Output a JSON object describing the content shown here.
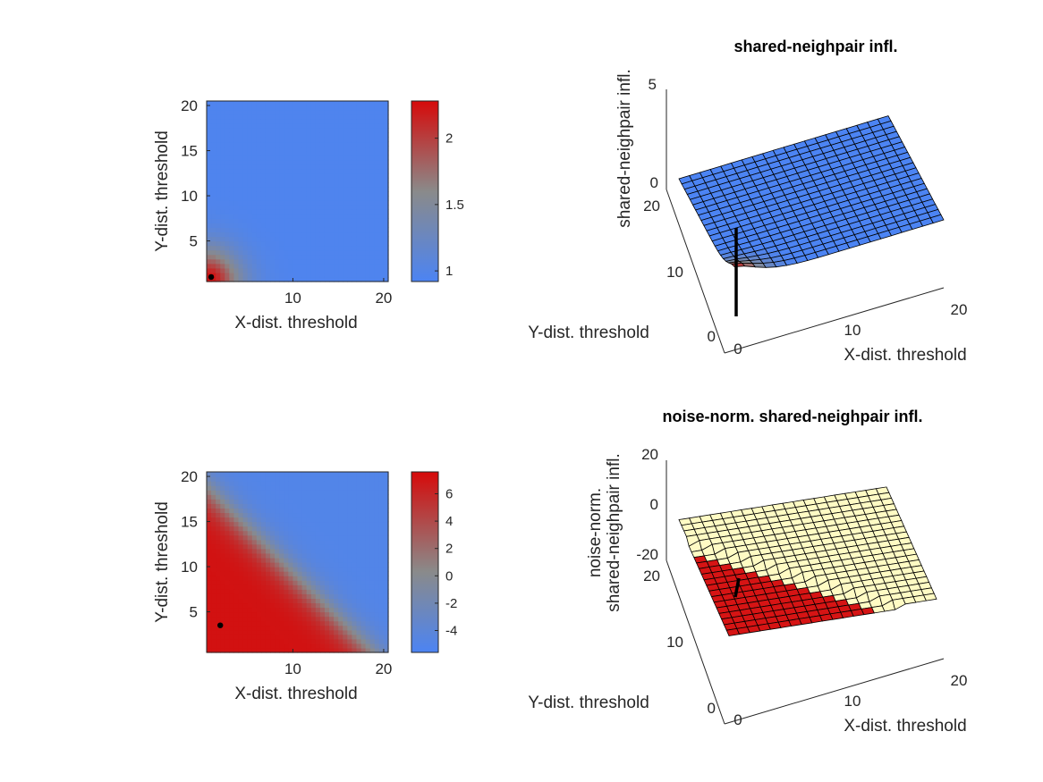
{
  "chart_data": [
    {
      "type": "heatmap",
      "xlabel": "X-dist. threshold",
      "ylabel": "Y-dist. threshold",
      "x_ticks": [
        "10",
        "20"
      ],
      "y_ticks": [
        "5",
        "10",
        "15",
        "20"
      ],
      "xlim": [
        0.5,
        20.5
      ],
      "ylim": [
        0.5,
        20.5
      ],
      "colorbar": {
        "ticks": [
          "1",
          "1.5",
          "2"
        ],
        "tick_values": [
          1,
          1.5,
          2
        ],
        "range": [
          0.92,
          2.28
        ]
      },
      "colormap": [
        "#4c84f3",
        "#8a8a8a",
        "#d60a0a"
      ],
      "value_model": "v = 0.95 + 1.3 * exp(-((x-1)/3.2)^1.6) * exp(-((y-1)/3.2)^1.6)",
      "marker": {
        "x": 1,
        "y": 1
      }
    },
    {
      "type": "surface",
      "title": "shared-neighpair infl.",
      "xlabel": "X-dist. threshold",
      "ylabel": "Y-dist. threshold",
      "zlabel": "shared-neighpair infl.",
      "x_ticks": [
        "0",
        "10",
        "20"
      ],
      "y_ticks": [
        "0",
        "10",
        "20"
      ],
      "z_ticks": [
        "0",
        "5"
      ],
      "zlim": [
        -2,
        5
      ],
      "grid": "20 x 20 mesh",
      "marker_line": {
        "x": 1,
        "y": 1,
        "z": [
          -2.5,
          3
        ]
      }
    },
    {
      "type": "heatmap",
      "xlabel": "X-dist. threshold",
      "ylabel": "Y-dist. threshold",
      "x_ticks": [
        "10",
        "20"
      ],
      "y_ticks": [
        "5",
        "10",
        "15",
        "20"
      ],
      "xlim": [
        0.5,
        20.5
      ],
      "ylim": [
        0.5,
        20.5
      ],
      "colorbar": {
        "ticks": [
          "6",
          "4",
          "2",
          "0",
          "-2",
          "-4"
        ],
        "tick_values": [
          6,
          4,
          2,
          0,
          -2,
          -4
        ],
        "range": [
          -5.6,
          7.6
        ]
      },
      "colormap": [
        "#4c84f3",
        "#8a8a8a",
        "#d60a0a"
      ],
      "value_model": "high (~7) where x + y < ~17, low (~-5) where x + y > ~22",
      "marker": {
        "x": 2,
        "y": 3.5
      }
    },
    {
      "type": "surface",
      "title": "noise-norm. shared-neighpair infl.",
      "xlabel": "X-dist. threshold",
      "ylabel": "Y-dist. threshold",
      "zlabel": [
        "noise-norm.",
        "shared-neighpair infl."
      ],
      "x_ticks": [
        "0",
        "10",
        "20"
      ],
      "y_ticks": [
        "0",
        "10",
        "20"
      ],
      "z_ticks": [
        "-20",
        "0",
        "20"
      ],
      "overlay_surface_color": "#fffbc4",
      "grid": "20 x 20 mesh",
      "marker_line": {
        "x": 2,
        "y": 3.5
      }
    }
  ]
}
